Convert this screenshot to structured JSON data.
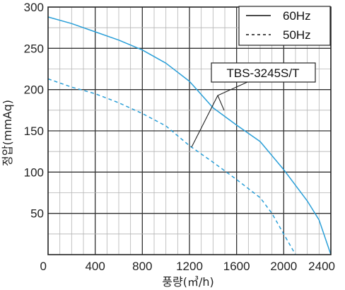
{
  "chart_data": {
    "type": "line",
    "xlabel": "풍량(㎥/h)",
    "ylabel": "정압(mmAq)",
    "xlim": [
      0,
      2400
    ],
    "ylim": [
      0,
      300
    ],
    "xticks": [
      0,
      400,
      800,
      1200,
      1600,
      2000,
      2400
    ],
    "yticks": [
      0,
      50,
      100,
      150,
      200,
      250,
      300
    ],
    "xtick_labels": [
      "0",
      "400",
      "800",
      "1200",
      "1600",
      "2000",
      "2400"
    ],
    "ytick_labels": [
      "0",
      "50",
      "100",
      "150",
      "200",
      "250",
      "300"
    ],
    "grid": true,
    "grid_minor_step_x": 100,
    "grid_step_y": 25,
    "legend_position": "top-right",
    "model_label": "TBS-3245S/T",
    "colors": {
      "curve": "#2a9fd8",
      "grid": "#b4b4b4",
      "axis": "#222222"
    },
    "series": [
      {
        "name": "60Hz",
        "style": "solid",
        "x": [
          0,
          200,
          400,
          600,
          800,
          1000,
          1200,
          1400,
          1600,
          1800,
          2000,
          2200,
          2300,
          2400
        ],
        "values": [
          288,
          280,
          270,
          260,
          248,
          232,
          210,
          178,
          157,
          137,
          103,
          65,
          42,
          0
        ]
      },
      {
        "name": "50Hz",
        "style": "dashed",
        "x": [
          0,
          200,
          400,
          600,
          800,
          1000,
          1200,
          1400,
          1600,
          1800,
          1900,
          2000,
          2100
        ],
        "values": [
          213,
          203,
          195,
          184,
          171,
          156,
          132,
          112,
          91,
          69,
          50,
          25,
          0
        ]
      }
    ]
  }
}
